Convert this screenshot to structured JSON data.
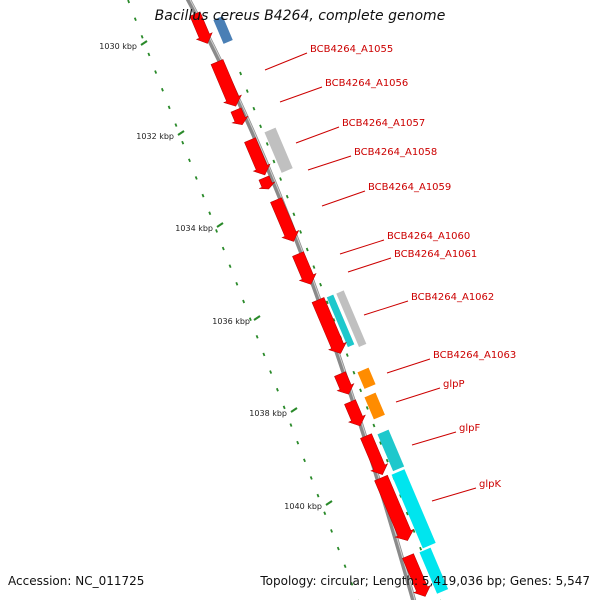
{
  "title": "Bacillus cereus B4264, complete genome",
  "footer": {
    "accession": "Accession: NC_011725",
    "summary": "Topology: circular; Length: 5,419,036 bp; Genes: 5,547"
  },
  "ticks": [
    {
      "label": "1030 kbp",
      "kbp": 1030
    },
    {
      "label": "1032 kbp",
      "kbp": 1032
    },
    {
      "label": "1034 kbp",
      "kbp": 1034
    },
    {
      "label": "1036 kbp",
      "kbp": 1036
    },
    {
      "label": "1038 kbp",
      "kbp": 1038
    },
    {
      "label": "1040 kbp",
      "kbp": 1040
    }
  ],
  "gene_labels": [
    "BCB4264_A1055",
    "BCB4264_A1056",
    "BCB4264_A1057",
    "BCB4264_A1058",
    "BCB4264_A1059",
    "BCB4264_A1060",
    "BCB4264_A1061",
    "BCB4264_A1062",
    "BCB4264_A1063",
    "glpP",
    "glpF",
    "glpK"
  ],
  "colors": {
    "backbone": "#8a8a8a",
    "cds": "#ff0000",
    "label": "#cc0000",
    "tick": "#2a8a2a",
    "feature_blue": "#4a7fb5",
    "feature_grey": "#c0c0c0",
    "feature_cyan": "#1ec8cc",
    "feature_orange": "#ff8c00",
    "feature_aqua": "#00e5ee"
  }
}
